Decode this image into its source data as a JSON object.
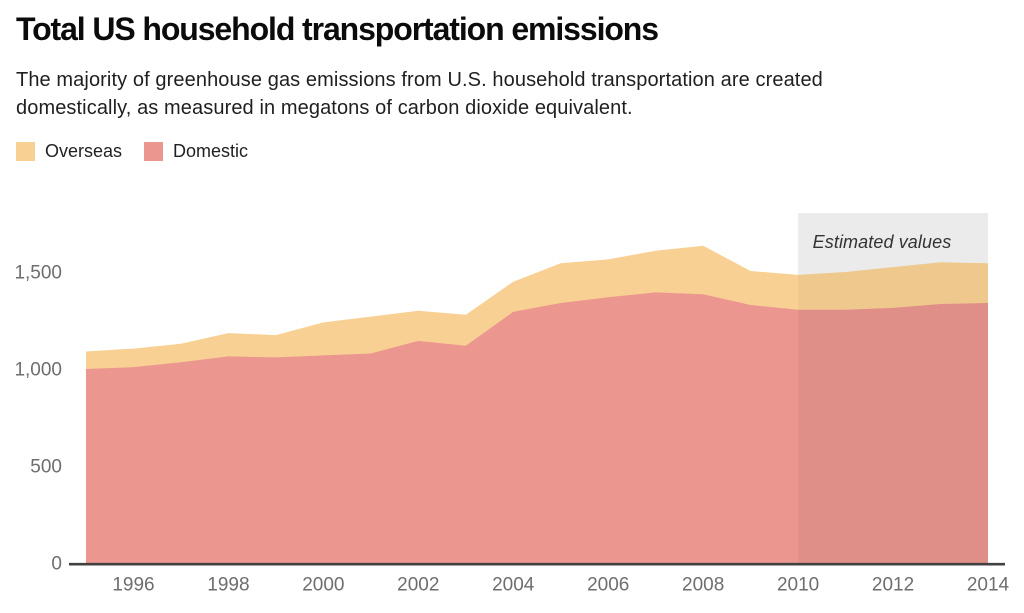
{
  "header": {
    "title": "Total US household transportation emissions",
    "subtitle_line1": "The majority of greenhouse gas emissions from U.S. household transportation are created",
    "subtitle_line2": "domestically, as measured in megatons of carbon dioxide equivalent."
  },
  "legend": {
    "items": [
      {
        "label": "Overseas",
        "swatch_color": "#F9D093"
      },
      {
        "label": "Domestic",
        "swatch_color": "#EB9790"
      }
    ]
  },
  "annotation": {
    "label": "Estimated values"
  },
  "colors": {
    "overseas": "#F9D093",
    "domestic": "#EB9790",
    "overseas_estimated": "#EFC88E",
    "domestic_estimated": "#E08E88",
    "estimated_background": "#EBEBEB",
    "axis_line": "#414141",
    "tick_label": "#6E6E6E"
  },
  "chart_data": {
    "type": "area",
    "stacked": true,
    "title": "Total US household transportation emissions",
    "units": "megatons of carbon dioxide equivalent",
    "x": [
      1995,
      1996,
      1997,
      1998,
      1999,
      2000,
      2001,
      2002,
      2003,
      2004,
      2005,
      2006,
      2007,
      2008,
      2009,
      2010,
      2011,
      2012,
      2013,
      2014
    ],
    "series": [
      {
        "name": "Domestic",
        "values": [
          1000,
          1010,
          1035,
          1065,
          1060,
          1070,
          1080,
          1145,
          1120,
          1295,
          1340,
          1370,
          1395,
          1385,
          1330,
          1305,
          1305,
          1315,
          1335,
          1340
        ]
      },
      {
        "name": "Overseas",
        "values": [
          90,
          95,
          95,
          120,
          115,
          170,
          190,
          155,
          160,
          155,
          205,
          195,
          215,
          250,
          175,
          180,
          195,
          210,
          215,
          205
        ]
      }
    ],
    "estimated_from": 2010,
    "estimated_label": "Estimated values",
    "x_ticks": [
      1996,
      1998,
      2000,
      2002,
      2004,
      2006,
      2008,
      2010,
      2012,
      2014
    ],
    "y_ticks": [
      0,
      500,
      1000,
      1500
    ],
    "y_tick_labels": [
      "0",
      "500",
      "1,000",
      "1,500"
    ],
    "xlim": [
      1995,
      2014
    ],
    "ylim": [
      0,
      1800
    ],
    "grid": false,
    "legend_position": "top-left"
  }
}
